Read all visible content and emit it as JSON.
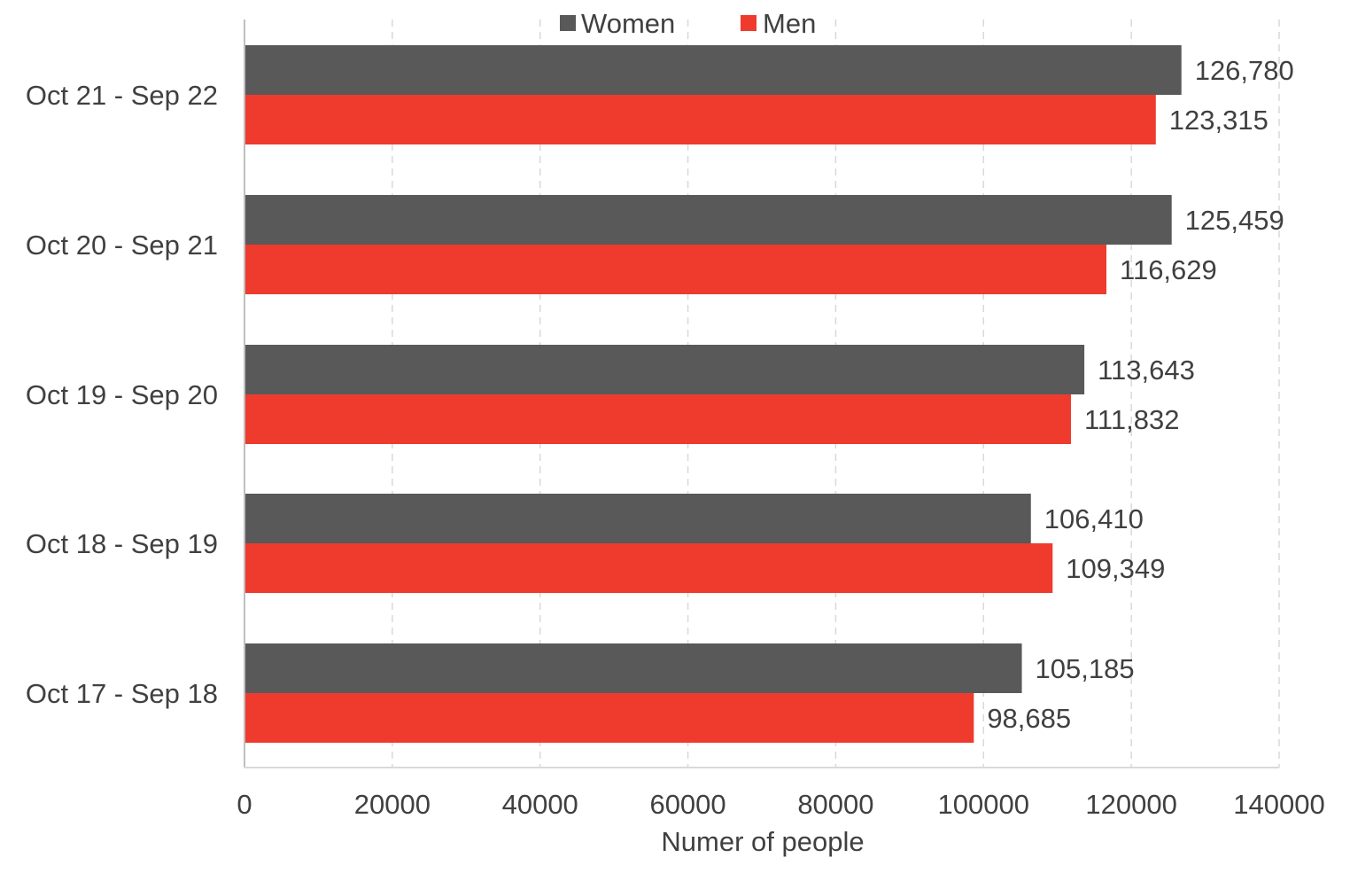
{
  "chart_data": {
    "type": "bar",
    "orientation": "horizontal",
    "categories": [
      "Oct 21 - Sep 22",
      "Oct 20 - Sep 21",
      "Oct 19 - Sep 20",
      "Oct 18 - Sep 19",
      "Oct 17 - Sep 18"
    ],
    "series": [
      {
        "name": "Women",
        "color": "#595959",
        "values": [
          126780,
          125459,
          113643,
          106410,
          105185
        ],
        "labels": [
          "126,780",
          "125,459",
          "113,643",
          "106,410",
          "105,185"
        ]
      },
      {
        "name": "Men",
        "color": "#EE3B2E",
        "values": [
          123315,
          116629,
          111832,
          109349,
          98685
        ],
        "labels": [
          "123,315",
          "116,629",
          "111,832",
          "109,349",
          "98,685"
        ]
      }
    ],
    "title": "",
    "xlabel": "Numer of people",
    "ylabel": "",
    "xlim": [
      0,
      140000
    ],
    "xticks": [
      0,
      20000,
      40000,
      60000,
      80000,
      100000,
      120000,
      140000
    ],
    "xtick_labels": [
      "0",
      "20000",
      "40000",
      "60000",
      "80000",
      "100000",
      "120000",
      "140000"
    ],
    "grid": "vertical dashed",
    "legend_position": "top"
  }
}
